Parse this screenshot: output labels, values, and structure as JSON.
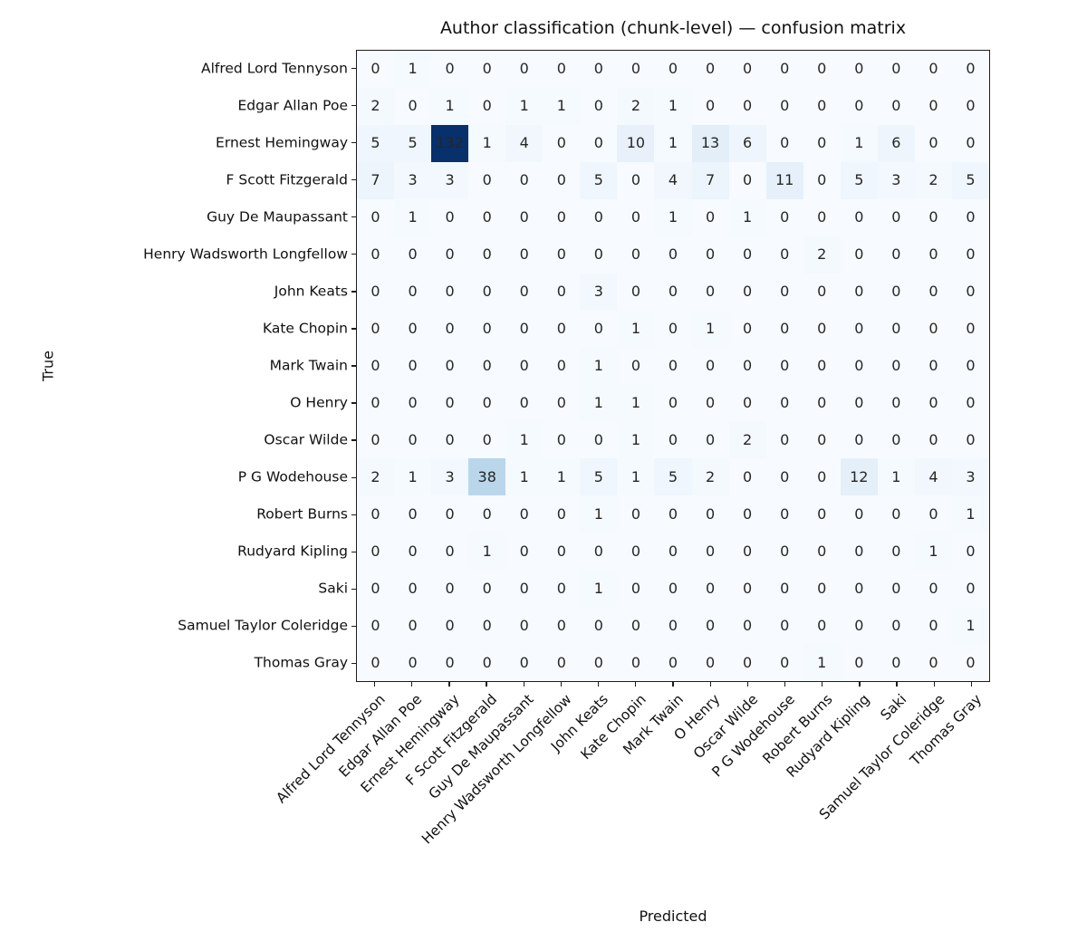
{
  "chart_data": {
    "type": "heatmap",
    "title": "Author classification (chunk-level) — confusion matrix",
    "xlabel": "Predicted",
    "ylabel": "True",
    "categories": [
      "Alfred Lord Tennyson",
      "Edgar Allan Poe",
      "Ernest Hemingway",
      "F Scott Fitzgerald",
      "Guy De Maupassant",
      "Henry Wadsworth Longfellow",
      "John Keats",
      "Kate Chopin",
      "Mark Twain",
      "O Henry",
      "Oscar Wilde",
      "P G Wodehouse",
      "Robert Burns",
      "Rudyard Kipling",
      "Saki",
      "Samuel Taylor Coleridge",
      "Thomas Gray"
    ],
    "matrix": [
      [
        0,
        1,
        0,
        0,
        0,
        0,
        0,
        0,
        0,
        0,
        0,
        0,
        0,
        0,
        0,
        0,
        0
      ],
      [
        2,
        0,
        1,
        0,
        1,
        1,
        0,
        2,
        1,
        0,
        0,
        0,
        0,
        0,
        0,
        0,
        0
      ],
      [
        5,
        5,
        132,
        1,
        4,
        0,
        0,
        10,
        1,
        13,
        6,
        0,
        0,
        1,
        6,
        0,
        0
      ],
      [
        7,
        3,
        3,
        0,
        0,
        0,
        5,
        0,
        4,
        7,
        0,
        11,
        0,
        5,
        3,
        2,
        5
      ],
      [
        0,
        1,
        0,
        0,
        0,
        0,
        0,
        0,
        1,
        0,
        1,
        0,
        0,
        0,
        0,
        0,
        0
      ],
      [
        0,
        0,
        0,
        0,
        0,
        0,
        0,
        0,
        0,
        0,
        0,
        0,
        2,
        0,
        0,
        0,
        0
      ],
      [
        0,
        0,
        0,
        0,
        0,
        0,
        3,
        0,
        0,
        0,
        0,
        0,
        0,
        0,
        0,
        0,
        0
      ],
      [
        0,
        0,
        0,
        0,
        0,
        0,
        0,
        1,
        0,
        1,
        0,
        0,
        0,
        0,
        0,
        0,
        0
      ],
      [
        0,
        0,
        0,
        0,
        0,
        0,
        1,
        0,
        0,
        0,
        0,
        0,
        0,
        0,
        0,
        0,
        0
      ],
      [
        0,
        0,
        0,
        0,
        0,
        0,
        1,
        1,
        0,
        0,
        0,
        0,
        0,
        0,
        0,
        0,
        0
      ],
      [
        0,
        0,
        0,
        0,
        1,
        0,
        0,
        1,
        0,
        0,
        2,
        0,
        0,
        0,
        0,
        0,
        0
      ],
      [
        2,
        1,
        3,
        38,
        1,
        1,
        5,
        1,
        5,
        2,
        0,
        0,
        0,
        12,
        1,
        4,
        3
      ],
      [
        0,
        0,
        0,
        0,
        0,
        0,
        1,
        0,
        0,
        0,
        0,
        0,
        0,
        0,
        0,
        0,
        1
      ],
      [
        0,
        0,
        0,
        1,
        0,
        0,
        0,
        0,
        0,
        0,
        0,
        0,
        0,
        0,
        0,
        1,
        0
      ],
      [
        0,
        0,
        0,
        0,
        0,
        0,
        1,
        0,
        0,
        0,
        0,
        0,
        0,
        0,
        0,
        0,
        0
      ],
      [
        0,
        0,
        0,
        0,
        0,
        0,
        0,
        0,
        0,
        0,
        0,
        0,
        0,
        0,
        0,
        0,
        1
      ],
      [
        0,
        0,
        0,
        0,
        0,
        0,
        0,
        0,
        0,
        0,
        0,
        0,
        1,
        0,
        0,
        0,
        0
      ]
    ],
    "vmin": 0,
    "vmax": 132,
    "grid": false,
    "legend": "none",
    "colormap": {
      "name": "Blues",
      "stops": [
        {
          "pos": 0.0,
          "color": "#f7fbff"
        },
        {
          "pos": 0.125,
          "color": "#deebf7"
        },
        {
          "pos": 0.25,
          "color": "#c6dbef"
        },
        {
          "pos": 0.375,
          "color": "#9ecae1"
        },
        {
          "pos": 0.5,
          "color": "#6baed6"
        },
        {
          "pos": 0.625,
          "color": "#4292c6"
        },
        {
          "pos": 0.75,
          "color": "#2171b5"
        },
        {
          "pos": 0.875,
          "color": "#08519c"
        },
        {
          "pos": 1.0,
          "color": "#08306b"
        }
      ]
    },
    "cell_text_color": "#262626",
    "frame_color": "#1c1c1c"
  }
}
